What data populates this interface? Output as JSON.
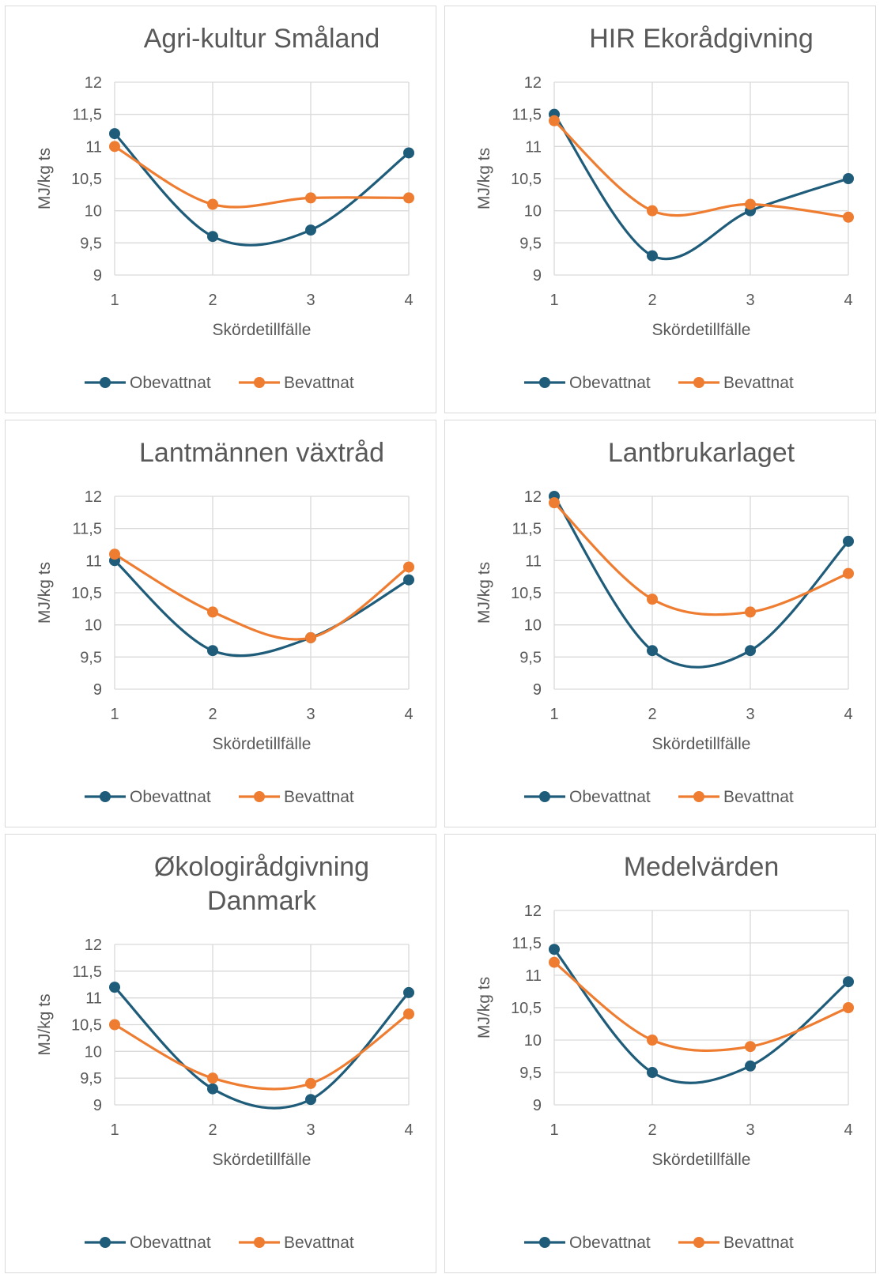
{
  "colors": {
    "obevattnat": "#1e5c7a",
    "bevattnat": "#ee7d31",
    "grid": "#d9d9d9"
  },
  "chart_data": [
    {
      "type": "line",
      "title_lines": [
        "Agri-kultur Småland"
      ],
      "x": [
        1,
        2,
        3,
        4
      ],
      "xlabel": "Skördetillfälle",
      "ylabel": "MJ/kg ts",
      "ylim": [
        9,
        12
      ],
      "ytick_labels": [
        "12",
        "11,5",
        "11",
        "10,5",
        "10",
        "9,5",
        "9"
      ],
      "xtick_labels": [
        "1",
        "2",
        "3",
        "4"
      ],
      "grid": true,
      "smooth": true,
      "legend": "bottom",
      "series": [
        {
          "name": "Obevattnat",
          "values": [
            11.2,
            9.6,
            9.7,
            10.9
          ]
        },
        {
          "name": "Bevattnat",
          "values": [
            11.0,
            10.1,
            10.2,
            10.2
          ]
        }
      ]
    },
    {
      "type": "line",
      "title_lines": [
        "HIR Ekorådgivning"
      ],
      "x": [
        1,
        2,
        3,
        4
      ],
      "xlabel": "Skördetillfälle",
      "ylabel": "MJ/kg ts",
      "ylim": [
        9,
        12
      ],
      "ytick_labels": [
        "12",
        "11,5",
        "11",
        "10,5",
        "10",
        "9,5",
        "9"
      ],
      "xtick_labels": [
        "1",
        "2",
        "3",
        "4"
      ],
      "grid": true,
      "smooth": true,
      "legend": "bottom",
      "series": [
        {
          "name": "Obevattnat",
          "values": [
            11.5,
            9.3,
            10.0,
            10.5
          ]
        },
        {
          "name": "Bevattnat",
          "values": [
            11.4,
            10.0,
            10.1,
            9.9
          ]
        }
      ]
    },
    {
      "type": "line",
      "title_lines": [
        "Lantmännen växtråd"
      ],
      "x": [
        1,
        2,
        3,
        4
      ],
      "xlabel": "Skördetillfälle",
      "ylabel": "MJ/kg ts",
      "ylim": [
        9,
        12
      ],
      "ytick_labels": [
        "12",
        "11,5",
        "11",
        "10,5",
        "10",
        "9,5",
        "9"
      ],
      "xtick_labels": [
        "1",
        "2",
        "3",
        "4"
      ],
      "grid": true,
      "smooth": true,
      "legend": "bottom",
      "series": [
        {
          "name": "Obevattnat",
          "values": [
            11.0,
            9.6,
            9.8,
            10.7
          ]
        },
        {
          "name": "Bevattnat",
          "values": [
            11.1,
            10.2,
            9.8,
            10.9
          ]
        }
      ]
    },
    {
      "type": "line",
      "title_lines": [
        "Lantbrukarlaget"
      ],
      "x": [
        1,
        2,
        3,
        4
      ],
      "xlabel": "Skördetillfälle",
      "ylabel": "MJ/kg ts",
      "ylim": [
        9,
        12
      ],
      "ytick_labels": [
        "12",
        "11,5",
        "11",
        "10,5",
        "10",
        "9,5",
        "9"
      ],
      "xtick_labels": [
        "1",
        "2",
        "3",
        "4"
      ],
      "grid": true,
      "smooth": true,
      "legend": "bottom",
      "series": [
        {
          "name": "Obevattnat",
          "values": [
            12.0,
            9.6,
            9.6,
            11.3
          ]
        },
        {
          "name": "Bevattnat",
          "values": [
            11.9,
            10.4,
            10.2,
            10.8
          ]
        }
      ]
    },
    {
      "type": "line",
      "title_lines": [
        "Økologirådgivning",
        "Danmark"
      ],
      "x": [
        1,
        2,
        3,
        4
      ],
      "xlabel": "Skördetillfälle",
      "ylabel": "MJ/kg ts",
      "ylim": [
        9,
        12
      ],
      "ytick_labels": [
        "12",
        "11,5",
        "11",
        "10,5",
        "10",
        "9,5",
        "9"
      ],
      "xtick_labels": [
        "1",
        "2",
        "3",
        "4"
      ],
      "grid": true,
      "smooth": true,
      "legend": "bottom",
      "series": [
        {
          "name": "Obevattnat",
          "values": [
            11.2,
            9.3,
            9.1,
            11.1
          ]
        },
        {
          "name": "Bevattnat",
          "values": [
            10.5,
            9.5,
            9.4,
            10.7
          ]
        }
      ]
    },
    {
      "type": "line",
      "title_lines": [
        "Medelvärden"
      ],
      "x": [
        1,
        2,
        3,
        4
      ],
      "xlabel": "Skördetillfälle",
      "ylabel": "MJ/kg ts",
      "ylim": [
        9,
        12
      ],
      "ytick_labels": [
        "12",
        "11,5",
        "11",
        "10,5",
        "10",
        "9,5",
        "9"
      ],
      "xtick_labels": [
        "1",
        "2",
        "3",
        "4"
      ],
      "grid": true,
      "smooth": true,
      "legend": "bottom",
      "series": [
        {
          "name": "Obevattnat",
          "values": [
            11.4,
            9.5,
            9.6,
            10.9
          ]
        },
        {
          "name": "Bevattnat",
          "values": [
            11.2,
            10.0,
            9.9,
            10.5
          ]
        }
      ]
    }
  ]
}
